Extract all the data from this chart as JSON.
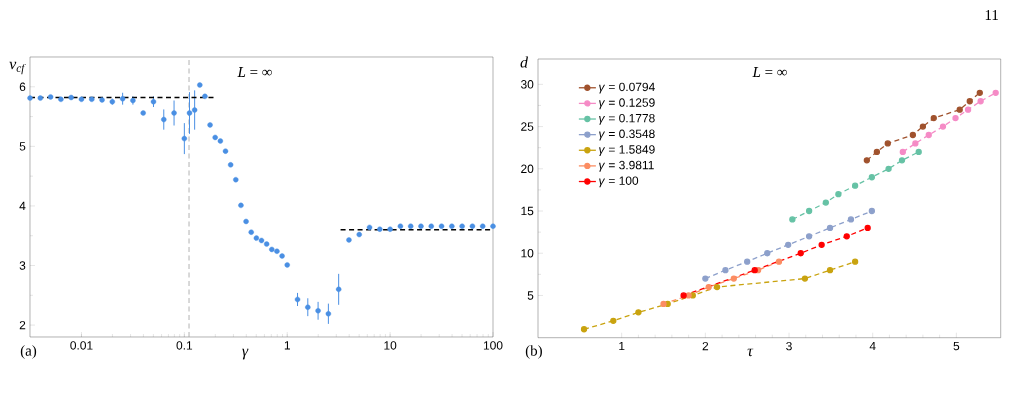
{
  "chart_data": [
    {
      "type": "scatter",
      "xlabel": "γ",
      "ylabel": "v$_{cf}$",
      "log": "x",
      "marker": "circle",
      "annotations": [
        "(a)",
        "*L* = ∞"
      ],
      "xlim": [
        0.00316,
        100
      ],
      "ylim": [
        1.8,
        6.5
      ],
      "xticks": [
        0.01,
        0.1,
        1,
        10,
        100
      ],
      "yticks": [
        2,
        3,
        4,
        5,
        6
      ],
      "x": [
        0.003162,
        0.003981,
        0.005012,
        0.00631,
        0.007943,
        0.01,
        0.01259,
        0.01585,
        0.01995,
        0.02512,
        0.03162,
        0.03981,
        0.05012,
        0.0631,
        0.07943,
        0.1,
        0.1122,
        0.1259,
        0.1413,
        0.1585,
        0.1778,
        0.1995,
        0.2239,
        0.2512,
        0.2818,
        0.3162,
        0.3548,
        0.3981,
        0.4467,
        0.5012,
        0.5623,
        0.631,
        0.7079,
        0.7943,
        0.8913,
        1,
        1.259,
        1.585,
        1.995,
        2.512,
        3.162,
        3.981,
        5.012,
        6.31,
        7.943,
        10,
        12.59,
        15.85,
        19.95,
        25.12,
        31.62,
        39.81,
        50.12,
        63.1,
        79.43,
        100
      ],
      "series": [
        {
          "color": "#4a8fe3",
          "values": [
            5.81,
            5.81,
            5.83,
            5.79,
            5.82,
            5.79,
            5.79,
            5.78,
            5.75,
            5.8,
            5.77,
            5.56,
            5.75,
            5.45,
            5.56,
            5.13,
            5.56,
            5.61,
            6.03,
            5.84,
            5.36,
            5.15,
            5.09,
            4.92,
            4.69,
            4.44,
            4.01,
            3.74,
            3.56,
            3.46,
            3.42,
            3.36,
            3.27,
            3.24,
            3.16,
            3.01,
            2.43,
            2.3,
            2.24,
            2.19,
            2.6,
            3.43,
            3.52,
            3.64,
            3.61,
            3.61,
            3.66,
            3.66,
            3.66,
            3.66,
            3.66,
            3.66,
            3.66,
            3.66,
            3.66,
            3.66
          ],
          "errors": [
            null,
            null,
            null,
            null,
            null,
            null,
            null,
            null,
            0.05,
            0.1,
            0.07,
            null,
            0.09,
            0.17,
            0.21,
            0.26,
            0.35,
            0.33,
            null,
            null,
            null,
            null,
            null,
            null,
            null,
            null,
            null,
            null,
            null,
            null,
            null,
            null,
            null,
            null,
            null,
            null,
            0.11,
            0.15,
            0.15,
            0.17,
            0.26,
            null,
            null,
            null,
            null,
            null,
            null,
            null,
            null,
            null,
            null,
            null,
            null,
            null,
            null,
            null
          ]
        },
        {
          "type": "line",
          "marker": "none",
          "line_style": "dashed",
          "color": "#000000",
          "x": [
            0.00316,
            0.2
          ],
          "values": [
            5.82,
            5.82
          ]
        },
        {
          "type": "line",
          "marker": "none",
          "line_style": "dashed",
          "color": "#000000",
          "x": [
            3.3,
            100
          ],
          "values": [
            3.6,
            3.6
          ]
        }
      ],
      "ref_lines": [
        {
          "axis": "x",
          "value": 0.111,
          "color": "#a8a8a8",
          "line_style": "dashed"
        }
      ]
    },
    {
      "type": "line",
      "xlabel": "τ",
      "ylabel": "d",
      "marker": "circle",
      "line_style": "dashed",
      "legend": "top left",
      "annotations": [
        "(b)",
        "*L* = ∞",
        "11"
      ],
      "xlim": [
        0,
        5.53
      ],
      "ylim": [
        0,
        33
      ],
      "xticks": [
        1,
        2,
        3,
        4,
        5
      ],
      "yticks": [
        5,
        10,
        15,
        20,
        25,
        30
      ],
      "series": [
        {
          "name": "*γ* = 0.0794",
          "color": "#a0522d",
          "x": [
            3.93,
            4.05,
            4.18,
            4.48,
            4.6,
            4.73,
            5.04,
            5.16,
            5.28
          ],
          "values": [
            21,
            22,
            23,
            24,
            25,
            26,
            27,
            28,
            29
          ]
        },
        {
          "name": "*γ* = 0.1259",
          "color": "#f58bc6",
          "x": [
            4.36,
            4.51,
            4.67,
            4.84,
            4.99,
            5.14,
            5.29,
            5.47
          ],
          "values": [
            22,
            23,
            24,
            25,
            26,
            27,
            28,
            29
          ]
        },
        {
          "name": "*γ* = 0.1778",
          "color": "#66c2a5",
          "x": [
            3.04,
            3.24,
            3.44,
            3.59,
            3.79,
            3.99,
            4.19,
            4.35,
            4.55
          ],
          "values": [
            14,
            15,
            16,
            17,
            18,
            19,
            20,
            21,
            22
          ]
        },
        {
          "name": "*γ* = 0.3548",
          "color": "#8da0cb",
          "x": [
            2.0,
            2.24,
            2.5,
            2.74,
            2.99,
            3.24,
            3.49,
            3.74,
            3.99
          ],
          "values": [
            7,
            8,
            9,
            10,
            11,
            12,
            13,
            14,
            15
          ]
        },
        {
          "name": "*γ* = 1.5849",
          "color": "#c9a30f",
          "x": [
            0.55,
            0.9,
            1.2,
            1.55,
            1.85,
            2.14,
            3.19,
            3.49,
            3.79
          ],
          "values": [
            1,
            2,
            3,
            4,
            5,
            6,
            7,
            8,
            9
          ]
        },
        {
          "name": "*γ* = 3.9811",
          "color": "#fc8d62",
          "x": [
            1.5,
            1.8,
            2.04,
            2.34,
            2.63,
            2.88
          ],
          "values": [
            4,
            5,
            6,
            7,
            8,
            9
          ]
        },
        {
          "name": "*γ* = 100",
          "color": "#ff0000",
          "x": [
            1.74,
            2.04,
            2.34,
            2.59,
            2.88,
            3.14,
            3.39,
            3.69,
            3.94
          ],
          "values": [
            5,
            null,
            null,
            8,
            null,
            10,
            11,
            12,
            13
          ]
        }
      ]
    }
  ]
}
